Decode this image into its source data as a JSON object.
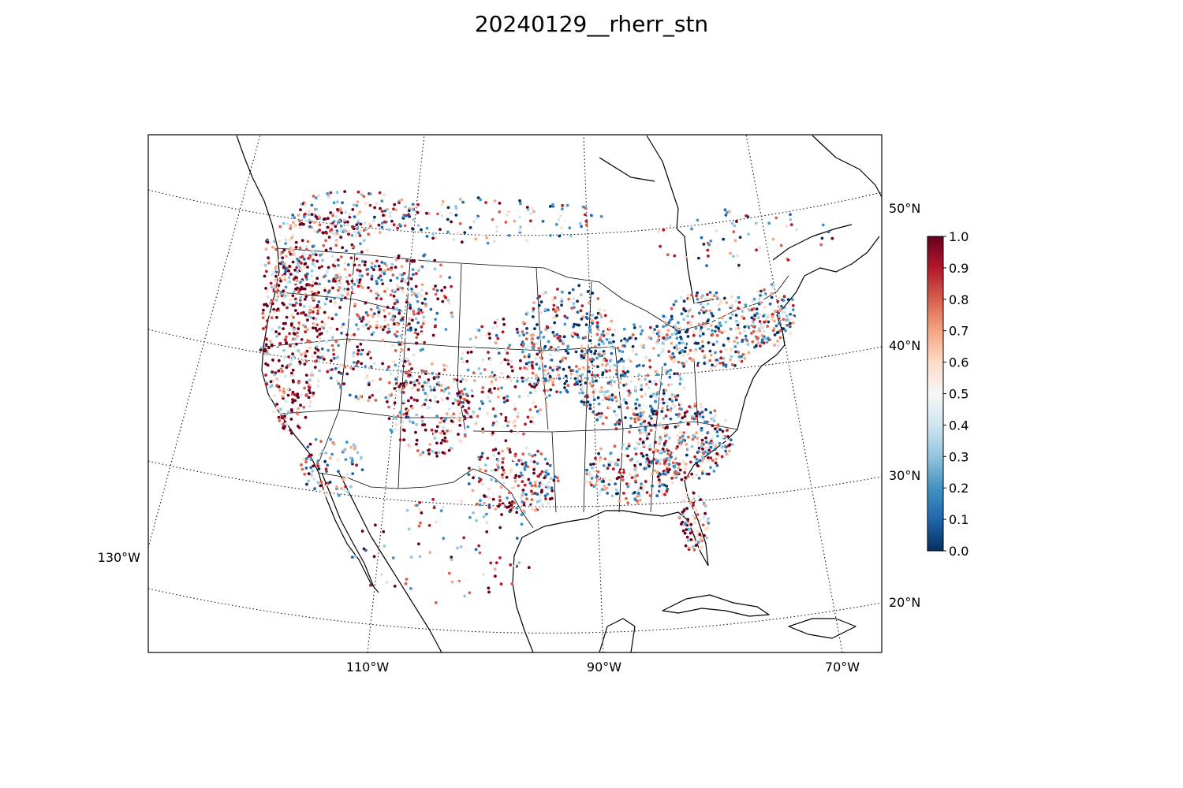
{
  "figure": {
    "title": "20240129__rherr_stn"
  },
  "map": {
    "projection": "lambert-conformal",
    "lat_labels": [
      "50°N",
      "40°N",
      "30°N",
      "20°N"
    ],
    "lon_labels": [
      "130°W",
      "110°W",
      "90°W",
      "70°W"
    ],
    "boundaries": [
      "coastline",
      "country",
      "us-states"
    ]
  },
  "colorbar": {
    "colormap": "RdBu_r",
    "colors": [
      "#053061",
      "#2166ac",
      "#4393c3",
      "#92c5de",
      "#d1e5f0",
      "#f7f7f7",
      "#fddbc7",
      "#f4a582",
      "#d6604d",
      "#b2182b",
      "#67001f"
    ],
    "ticks": [
      "0.0",
      "0.1",
      "0.2",
      "0.3",
      "0.4",
      "0.5",
      "0.6",
      "0.7",
      "0.8",
      "0.9",
      "1.0"
    ],
    "range": [
      0.0,
      1.0
    ]
  }
}
